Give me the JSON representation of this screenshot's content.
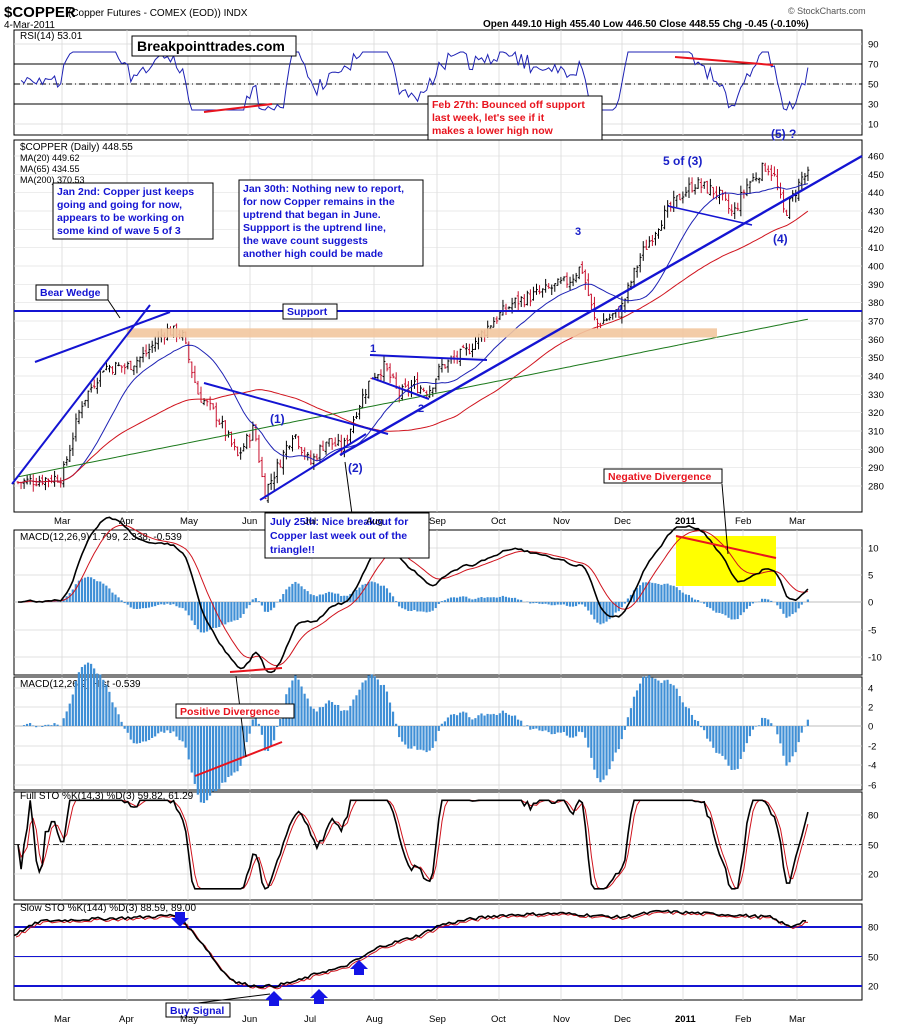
{
  "header": {
    "symbol": "$COPPER",
    "name": "(Copper Futures - COMEX (EOD)) INDX",
    "date": "4-Mar-2011",
    "ohlc": "Open 449.10  High 455.40  Low 446.50  Close 448.55  Chg -0.45 (-0.10%)",
    "brand": "© StockCharts.com",
    "site": "Breakpointtrades.com"
  },
  "colors": {
    "price_up": "#000000",
    "price_down": "#c8102e",
    "ma20": "#1e22b4",
    "ma65": "#d0141e",
    "ma200": "#1d7a1d",
    "trend": "#1414d2",
    "annotation_red": "#e8141e",
    "highlight_yellow": "#ffff00",
    "support_band": "#f2c79e",
    "hist": "#3f8fd6"
  },
  "panels": {
    "rsi": {
      "label": "RSI(14) 53.01",
      "ticks": [
        "90",
        "70",
        "50",
        "30",
        "10"
      ]
    },
    "price": {
      "label": "$COPPER (Daily) 448.55",
      "legend": [
        "MA(20) 449.62",
        "MA(65) 434.55",
        "MA(200) 370.53"
      ],
      "ticks": [
        "460",
        "450",
        "440",
        "430",
        "420",
        "410",
        "400",
        "390",
        "380",
        "370",
        "360",
        "350",
        "340",
        "330",
        "320",
        "310",
        "300",
        "290",
        "280"
      ]
    },
    "macd": {
      "label": "MACD(12,26,9) 1.799, 2.338, -0.539",
      "ticks": [
        "10",
        "5",
        "0",
        "-5",
        "-10"
      ]
    },
    "hist": {
      "label": "MACD(12,26,9) Hist -0.539",
      "ticks": [
        "4",
        "2",
        "0",
        "-2",
        "-4",
        "-6"
      ]
    },
    "full_sto": {
      "label": "Full STO %K(14,3) %D(3) 59.82, 61.29",
      "ticks": [
        "80",
        "50",
        "20"
      ]
    },
    "slow_sto": {
      "label": "Slow STO %K(144) %D(3) 88.59, 89.00",
      "ticks": [
        "80",
        "50",
        "20"
      ]
    }
  },
  "x_axis": {
    "months_top": [
      "Mar",
      "Apr",
      "May",
      "Jun",
      "Jul",
      "Aug",
      "Sep",
      "Oct",
      "Nov",
      "Dec",
      "2011",
      "Feb",
      "Mar"
    ],
    "months_bottom": [
      "Mar",
      "Apr",
      "May",
      "Jun",
      "Jul",
      "Aug",
      "Sep",
      "Oct",
      "Nov",
      "Dec",
      "2011",
      "Feb",
      "Mar"
    ]
  },
  "annotations": {
    "feb27": "Feb 27th: Bounced off support last week, let's see if it makes a lower high now",
    "jan2": "Jan 2nd: Copper just keeps going and going for now, appears to be working on some kind of wave 5 of 3",
    "jan30": "Jan 30th: Nothing new to report, for now Copper remains in the uptrend that began in June. Suppport is the uptrend line, the wave count suggests another high could be made",
    "bear_wedge": "Bear Wedge",
    "support": "Support",
    "july25": "July 25th: Nice breakout for Copper last week out of the triangle!!",
    "neg_div": "Negative Divergence",
    "pos_div": "Positive Divergence",
    "buy_signal": "Buy Signal"
  },
  "waves": [
    "(1)",
    "(2)",
    "1",
    "2",
    "3",
    "4",
    "5 of (3)",
    "(4)",
    "(5) ?"
  ],
  "chart_data": {
    "type": "candlestick",
    "title": "$COPPER (Copper Futures - COMEX (EOD)) INDX",
    "ylim": [
      272,
      462
    ],
    "last": {
      "open": 449.1,
      "high": 455.4,
      "low": 446.5,
      "close": 448.55
    },
    "ma": {
      "MA(20)": 449.62,
      "MA(65)": 434.55,
      "MA(200)": 370.53
    },
    "indicators": {
      "RSI(14)": 53.01,
      "MACD": 1.799,
      "Signal": 2.338,
      "Hist": -0.539,
      "FullSTO_K": 59.82,
      "FullSTO_D": 61.29,
      "SlowSTO_K": 88.59,
      "SlowSTO_D": 89.0
    },
    "price_path": [
      [
        "2010-03-01",
        285
      ],
      [
        "2010-03-10",
        325
      ],
      [
        "2010-03-20",
        345
      ],
      [
        "2010-03-31",
        345
      ],
      [
        "2010-04-10",
        352
      ],
      [
        "2010-04-20",
        365
      ],
      [
        "2010-04-28",
        363
      ],
      [
        "2010-05-06",
        330
      ],
      [
        "2010-05-15",
        318
      ],
      [
        "2010-05-25",
        296
      ],
      [
        "2010-06-03",
        312
      ],
      [
        "2010-06-08",
        276
      ],
      [
        "2010-06-15",
        292
      ],
      [
        "2010-06-22",
        310
      ],
      [
        "2010-06-30",
        292
      ],
      [
        "2010-07-08",
        305
      ],
      [
        "2010-07-16",
        300
      ],
      [
        "2010-07-22",
        320
      ],
      [
        "2010-07-30",
        340
      ],
      [
        "2010-08-06",
        345
      ],
      [
        "2010-08-13",
        330
      ],
      [
        "2010-08-20",
        335
      ],
      [
        "2010-08-27",
        332
      ],
      [
        "2010-09-03",
        345
      ],
      [
        "2010-09-15",
        353
      ],
      [
        "2010-09-28",
        370
      ],
      [
        "2010-10-08",
        380
      ],
      [
        "2010-10-20",
        385
      ],
      [
        "2010-11-05",
        392
      ],
      [
        "2010-11-11",
        400
      ],
      [
        "2010-11-18",
        368
      ],
      [
        "2010-11-30",
        375
      ],
      [
        "2010-12-10",
        405
      ],
      [
        "2010-12-20",
        425
      ],
      [
        "2010-12-31",
        440
      ],
      [
        "2011-01-07",
        445
      ],
      [
        "2011-01-18",
        440
      ],
      [
        "2011-01-26",
        428
      ],
      [
        "2011-02-03",
        444
      ],
      [
        "2011-02-14",
        455
      ],
      [
        "2011-02-18",
        450
      ],
      [
        "2011-02-24",
        428
      ],
      [
        "2011-03-04",
        449
      ]
    ]
  }
}
